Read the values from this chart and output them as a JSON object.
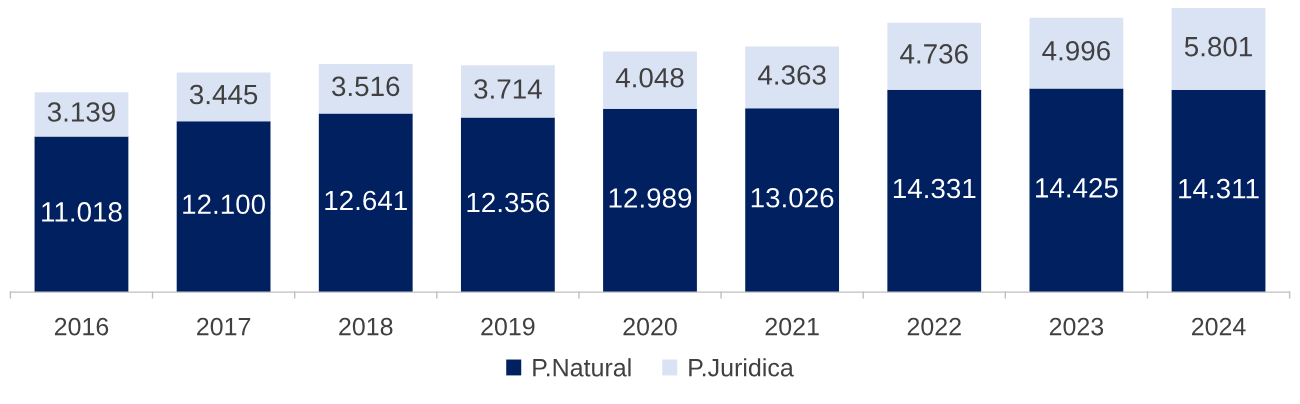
{
  "chart_data": {
    "type": "bar",
    "stacked": true,
    "categories": [
      "2016",
      "2017",
      "2018",
      "2019",
      "2020",
      "2021",
      "2022",
      "2023",
      "2024"
    ],
    "series": [
      {
        "name": "P.Natural",
        "color": "#002060",
        "values": [
          11018,
          12100,
          12641,
          12356,
          12989,
          13026,
          14331,
          14425,
          14311
        ],
        "value_labels": [
          "11.018",
          "12.100",
          "12.641",
          "12.356",
          "12.989",
          "13.026",
          "14.331",
          "14.425",
          "14.311"
        ]
      },
      {
        "name": "P.Juridica",
        "color": "#dae3f3",
        "values": [
          3139,
          3445,
          3516,
          3714,
          4048,
          4363,
          4736,
          4996,
          5801
        ],
        "value_labels": [
          "3.139",
          "3.445",
          "3.516",
          "3.714",
          "4.048",
          "4.363",
          "4.736",
          "4.996",
          "5.801"
        ]
      }
    ],
    "legend": "bottom",
    "grid": false
  }
}
